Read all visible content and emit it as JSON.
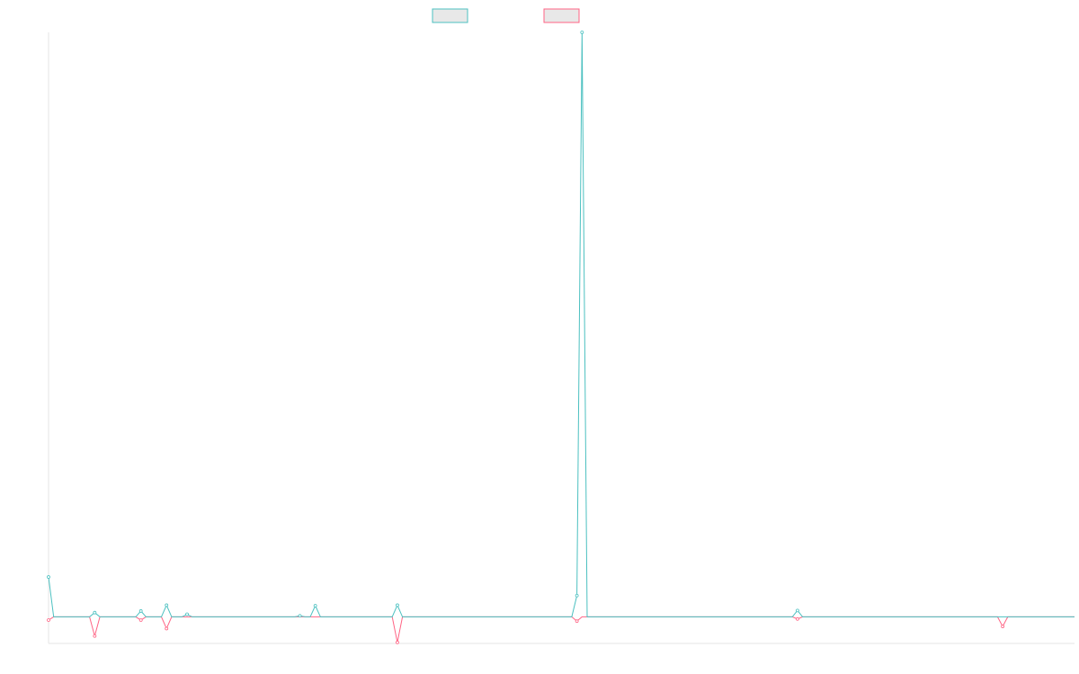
{
  "chart_data": {
    "type": "line",
    "title": "",
    "xlabel": "",
    "ylabel": "",
    "legend_position": "top-center",
    "grid": false,
    "xlim": [
      0,
      200
    ],
    "ylim": [
      -5,
      110
    ],
    "x": [
      0,
      1,
      2,
      3,
      4,
      5,
      6,
      7,
      8,
      9,
      10,
      11,
      12,
      13,
      14,
      15,
      16,
      17,
      18,
      19,
      20,
      21,
      22,
      23,
      24,
      25,
      26,
      27,
      28,
      29,
      30,
      31,
      32,
      33,
      34,
      35,
      36,
      37,
      38,
      39,
      40,
      41,
      42,
      43,
      44,
      45,
      46,
      47,
      48,
      49,
      50,
      51,
      52,
      53,
      54,
      55,
      56,
      57,
      58,
      59,
      60,
      61,
      62,
      63,
      64,
      65,
      66,
      67,
      68,
      69,
      70,
      71,
      72,
      73,
      74,
      75,
      76,
      77,
      78,
      79,
      80,
      81,
      82,
      83,
      84,
      85,
      86,
      87,
      88,
      89,
      90,
      91,
      92,
      93,
      94,
      95,
      96,
      97,
      98,
      99,
      100,
      101,
      102,
      103,
      104,
      105,
      106,
      107,
      108,
      109,
      110,
      111,
      112,
      113,
      114,
      115,
      116,
      117,
      118,
      119,
      120,
      121,
      122,
      123,
      124,
      125,
      126,
      127,
      128,
      129,
      130,
      131,
      132,
      133,
      134,
      135,
      136,
      137,
      138,
      139,
      140,
      141,
      142,
      143,
      144,
      145,
      146,
      147,
      148,
      149,
      150,
      151,
      152,
      153,
      154,
      155,
      156,
      157,
      158,
      159,
      160,
      161,
      162,
      163,
      164,
      165,
      166,
      167,
      168,
      169,
      170,
      171,
      172,
      173,
      174,
      175,
      176,
      177,
      178,
      179,
      180,
      181,
      182,
      183,
      184,
      185,
      186,
      187,
      188,
      189,
      190,
      191,
      192,
      193,
      194,
      195,
      196,
      197,
      198,
      199,
      200
    ],
    "series": [
      {
        "color": "#4bc0c0",
        "values": [
          7.5,
          0,
          0,
          0,
          0,
          0,
          0,
          0,
          0,
          0.8,
          0,
          0,
          0,
          0,
          0,
          0,
          0,
          0,
          1.1,
          0,
          0,
          0,
          0,
          2.2,
          0,
          0,
          0,
          0.5,
          0,
          0,
          0,
          0,
          0,
          0,
          0,
          0,
          0,
          0,
          0,
          0,
          0,
          0,
          0,
          0,
          0,
          0,
          0,
          0,
          0,
          0.2,
          0,
          0,
          2.1,
          0,
          0,
          0,
          0,
          0,
          0,
          0,
          0,
          0,
          0,
          0,
          0,
          0,
          0,
          0,
          2.2,
          0,
          0,
          0,
          0,
          0,
          0,
          0,
          0,
          0,
          0,
          0,
          0,
          0,
          0,
          0,
          0,
          0,
          0,
          0,
          0,
          0,
          0,
          0,
          0,
          0,
          0,
          0,
          0,
          0,
          0,
          0,
          0,
          0,
          0,
          4.0,
          110,
          0,
          0,
          0,
          0,
          0,
          0,
          0,
          0,
          0,
          0,
          0,
          0,
          0,
          0,
          0,
          0,
          0,
          0,
          0,
          0,
          0,
          0,
          0,
          0,
          0,
          0,
          0,
          0,
          0,
          0,
          0,
          0,
          0,
          0,
          0,
          0,
          0,
          0,
          0,
          0,
          0,
          1.2,
          0,
          0,
          0,
          0,
          0,
          0,
          0,
          0,
          0,
          0,
          0,
          0,
          0,
          0,
          0,
          0,
          0,
          0,
          0,
          0,
          0,
          0,
          0,
          0,
          0,
          0,
          0,
          0,
          0,
          0,
          0,
          0,
          0,
          0,
          0,
          0,
          0,
          0,
          0,
          0,
          0,
          0,
          0,
          0,
          0,
          0,
          0,
          0,
          0,
          0,
          0,
          0,
          0,
          0
        ]
      },
      {
        "color": "#ff6384",
        "values": [
          -0.6,
          0,
          0,
          0,
          0,
          0,
          0,
          0,
          0,
          -3.6,
          0,
          0,
          0,
          0,
          0,
          0,
          0,
          0,
          -0.6,
          0,
          0,
          0,
          0,
          -2.2,
          0,
          0,
          0,
          0,
          0,
          0,
          0,
          0,
          0,
          0,
          0,
          0,
          0,
          0,
          0,
          0,
          0,
          0,
          0,
          0,
          0,
          0,
          0,
          0,
          0,
          0,
          0,
          0,
          0,
          0,
          0,
          0,
          0,
          0,
          0,
          0,
          0,
          0,
          0,
          0,
          0,
          0,
          0,
          0,
          -4.8,
          0,
          0,
          0,
          0,
          0,
          0,
          0,
          0,
          0,
          0,
          0,
          0,
          0,
          0,
          0,
          0,
          0,
          0,
          0,
          0,
          0,
          0,
          0,
          0,
          0,
          0,
          0,
          0,
          0,
          0,
          0,
          0,
          0,
          0,
          -0.8,
          0,
          0,
          0,
          0,
          0,
          0,
          0,
          0,
          0,
          0,
          0,
          0,
          0,
          0,
          0,
          0,
          0,
          0,
          0,
          0,
          0,
          0,
          0,
          0,
          0,
          0,
          0,
          0,
          0,
          0,
          0,
          0,
          0,
          0,
          0,
          0,
          0,
          0,
          0,
          0,
          0,
          0,
          -0.4,
          0,
          0,
          0,
          0,
          0,
          0,
          0,
          0,
          0,
          0,
          0,
          0,
          0,
          0,
          0,
          0,
          0,
          0,
          0,
          0,
          0,
          0,
          0,
          0,
          0,
          0,
          0,
          0,
          0,
          0,
          0,
          0,
          0,
          0,
          0,
          0,
          0,
          0,
          0,
          -1.8,
          0,
          0,
          0,
          0,
          0,
          0,
          0,
          0,
          0,
          0,
          0,
          0,
          0,
          0
        ]
      }
    ]
  }
}
